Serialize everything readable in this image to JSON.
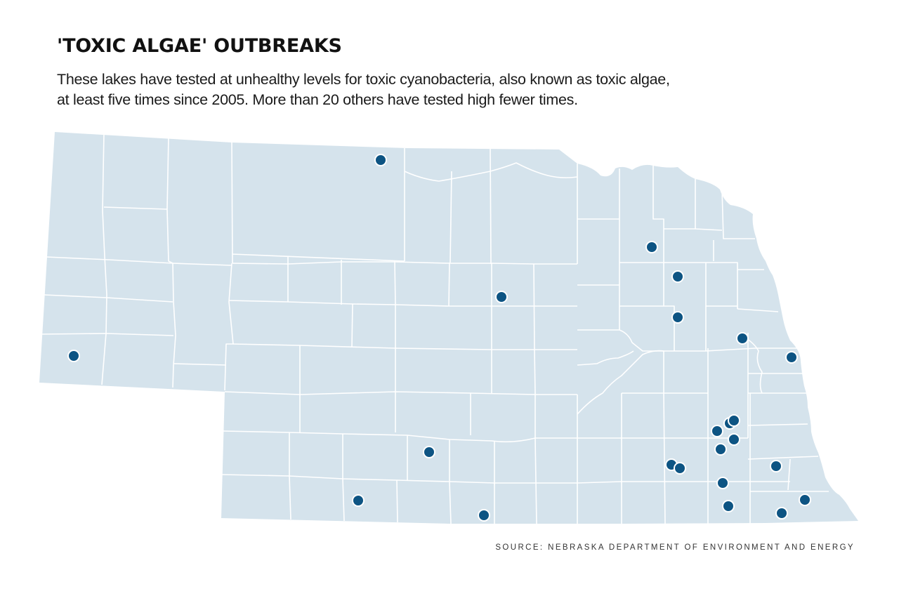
{
  "header": {
    "title": "'TOXIC ALGAE' OUTBREAKS",
    "subtitle_line1": "These lakes have tested at unhealthy levels for toxic cyanobacteria, also known as toxic algae,",
    "subtitle_line2": "at least five times since 2005. More than 20 others have tested high fewer times."
  },
  "map": {
    "region": "Nebraska",
    "fill_color": "#d5e3ec",
    "border_color": "#ffffff",
    "marker_color": "#0d5483",
    "marker_outline": "#ffffff",
    "markers_count": 24
  },
  "footer": {
    "source": "SOURCE: NEBRASKA DEPARTMENT OF ENVIRONMENT AND ENERGY"
  }
}
